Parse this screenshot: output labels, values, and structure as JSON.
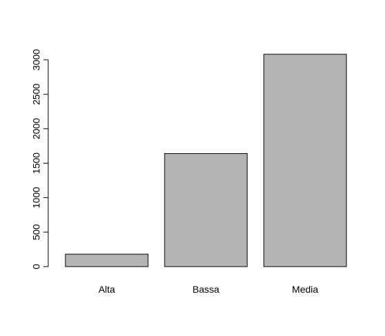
{
  "chart_data": {
    "type": "bar",
    "categories": [
      "Alta",
      "Bassa",
      "Media"
    ],
    "values": [
      180,
      1640,
      3080
    ],
    "title": "",
    "xlabel": "",
    "ylabel": "",
    "ylim": [
      0,
      3000
    ],
    "y_ticks": [
      0,
      500,
      1000,
      1500,
      2000,
      2500,
      3000
    ],
    "y_tick_labels": [
      "0",
      "500",
      "1000",
      "1500",
      "2000",
      "2500",
      "3000"
    ],
    "grid": false,
    "legend": "none",
    "bar_fill": "#b3b3b3",
    "bar_stroke": "#000000"
  }
}
